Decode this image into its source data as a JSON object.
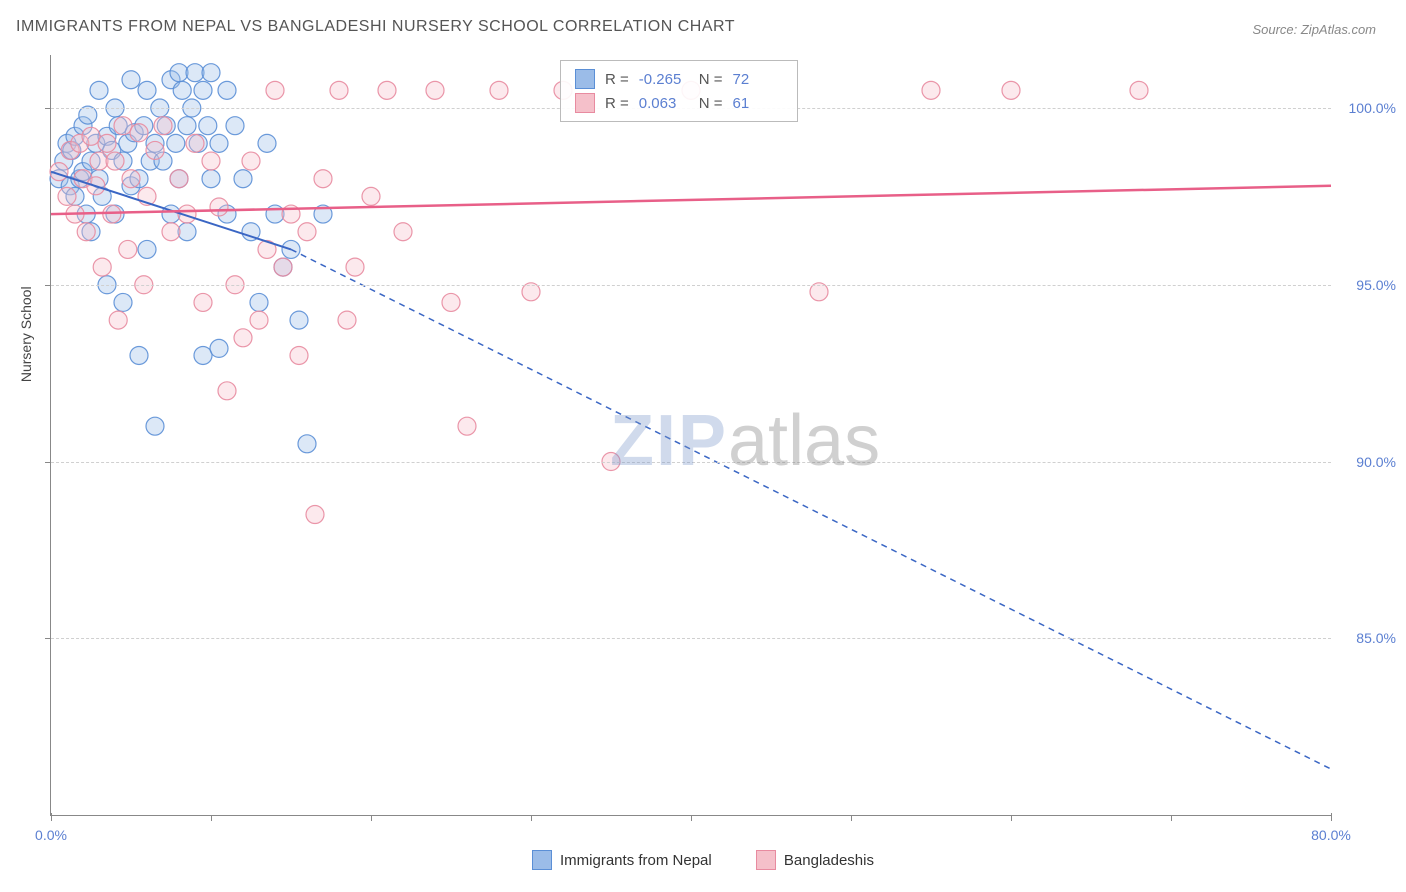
{
  "title": "IMMIGRANTS FROM NEPAL VS BANGLADESHI NURSERY SCHOOL CORRELATION CHART",
  "source": "Source: ZipAtlas.com",
  "ylabel": "Nursery School",
  "watermark": {
    "part1": "ZIP",
    "part2": "atlas"
  },
  "chart": {
    "type": "scatter-correlation",
    "xlim": [
      0,
      80
    ],
    "ylim": [
      80,
      101.5
    ],
    "xtick_major": [
      0,
      80
    ],
    "xtick_minor": [
      10,
      20,
      30,
      40,
      50,
      60,
      70
    ],
    "ytick_labels": [
      85.0,
      90.0,
      95.0,
      100.0
    ],
    "x_tick_format": "{v}.0%",
    "y_tick_format": "{v}.0%",
    "background_color": "#ffffff",
    "grid_color": "#d0d0d0",
    "axis_color": "#888888",
    "marker_radius": 9,
    "series": [
      {
        "key": "nepal",
        "label": "Immigrants from Nepal",
        "color_fill": "#9bbce8",
        "color_stroke": "#5b8fd6",
        "R": "-0.265",
        "N": "72",
        "trend": {
          "solid": [
            [
              0,
              98.2
            ],
            [
              15,
              96.0
            ]
          ],
          "dashed": [
            [
              15,
              96.0
            ],
            [
              80,
              81.3
            ]
          ],
          "color": "#3a66c4",
          "width": 2
        },
        "points": [
          [
            0.5,
            98.0
          ],
          [
            0.8,
            98.5
          ],
          [
            1.0,
            99.0
          ],
          [
            1.2,
            97.8
          ],
          [
            1.3,
            98.8
          ],
          [
            1.5,
            99.2
          ],
          [
            1.5,
            97.5
          ],
          [
            1.8,
            98.0
          ],
          [
            2.0,
            99.5
          ],
          [
            2.0,
            98.2
          ],
          [
            2.2,
            97.0
          ],
          [
            2.3,
            99.8
          ],
          [
            2.5,
            98.5
          ],
          [
            2.5,
            96.5
          ],
          [
            2.8,
            99.0
          ],
          [
            3.0,
            100.5
          ],
          [
            3.0,
            98.0
          ],
          [
            3.2,
            97.5
          ],
          [
            3.5,
            99.2
          ],
          [
            3.5,
            95.0
          ],
          [
            3.8,
            98.8
          ],
          [
            4.0,
            100.0
          ],
          [
            4.0,
            97.0
          ],
          [
            4.2,
            99.5
          ],
          [
            4.5,
            98.5
          ],
          [
            4.5,
            94.5
          ],
          [
            4.8,
            99.0
          ],
          [
            5.0,
            100.8
          ],
          [
            5.0,
            97.8
          ],
          [
            5.2,
            99.3
          ],
          [
            5.5,
            98.0
          ],
          [
            5.5,
            93.0
          ],
          [
            5.8,
            99.5
          ],
          [
            6.0,
            100.5
          ],
          [
            6.0,
            96.0
          ],
          [
            6.2,
            98.5
          ],
          [
            6.5,
            99.0
          ],
          [
            6.5,
            91.0
          ],
          [
            6.8,
            100.0
          ],
          [
            7.0,
            98.5
          ],
          [
            7.2,
            99.5
          ],
          [
            7.5,
            100.8
          ],
          [
            7.5,
            97.0
          ],
          [
            7.8,
            99.0
          ],
          [
            8.0,
            101.0
          ],
          [
            8.0,
            98.0
          ],
          [
            8.2,
            100.5
          ],
          [
            8.5,
            99.5
          ],
          [
            8.5,
            96.5
          ],
          [
            8.8,
            100.0
          ],
          [
            9.0,
            101.0
          ],
          [
            9.2,
            99.0
          ],
          [
            9.5,
            100.5
          ],
          [
            9.5,
            93.0
          ],
          [
            9.8,
            99.5
          ],
          [
            10.0,
            101.0
          ],
          [
            10.0,
            98.0
          ],
          [
            10.5,
            99.0
          ],
          [
            10.5,
            93.2
          ],
          [
            11.0,
            100.5
          ],
          [
            11.0,
            97.0
          ],
          [
            11.5,
            99.5
          ],
          [
            12.0,
            98.0
          ],
          [
            12.5,
            96.5
          ],
          [
            13.0,
            94.5
          ],
          [
            13.5,
            99.0
          ],
          [
            14.0,
            97.0
          ],
          [
            14.5,
            95.5
          ],
          [
            15.0,
            96.0
          ],
          [
            15.5,
            94.0
          ],
          [
            16.0,
            90.5
          ],
          [
            17.0,
            97.0
          ]
        ]
      },
      {
        "key": "bangladeshi",
        "label": "Bangladeshis",
        "color_fill": "#f5c0ca",
        "color_stroke": "#e88ba0",
        "R": "0.063",
        "N": "61",
        "trend": {
          "solid": [
            [
              0,
              97.0
            ],
            [
              80,
              97.8
            ]
          ],
          "color": "#e85f88",
          "width": 2.5
        },
        "points": [
          [
            0.5,
            98.2
          ],
          [
            1.0,
            97.5
          ],
          [
            1.2,
            98.8
          ],
          [
            1.5,
            97.0
          ],
          [
            1.8,
            99.0
          ],
          [
            2.0,
            98.0
          ],
          [
            2.2,
            96.5
          ],
          [
            2.5,
            99.2
          ],
          [
            2.8,
            97.8
          ],
          [
            3.0,
            98.5
          ],
          [
            3.2,
            95.5
          ],
          [
            3.5,
            99.0
          ],
          [
            3.8,
            97.0
          ],
          [
            4.0,
            98.5
          ],
          [
            4.2,
            94.0
          ],
          [
            4.5,
            99.5
          ],
          [
            4.8,
            96.0
          ],
          [
            5.0,
            98.0
          ],
          [
            5.5,
            99.3
          ],
          [
            5.8,
            95.0
          ],
          [
            6.0,
            97.5
          ],
          [
            6.5,
            98.8
          ],
          [
            7.0,
            99.5
          ],
          [
            7.5,
            96.5
          ],
          [
            8.0,
            98.0
          ],
          [
            8.5,
            97.0
          ],
          [
            9.0,
            99.0
          ],
          [
            9.5,
            94.5
          ],
          [
            10.0,
            98.5
          ],
          [
            10.5,
            97.2
          ],
          [
            11.0,
            92.0
          ],
          [
            11.5,
            95.0
          ],
          [
            12.0,
            93.5
          ],
          [
            12.5,
            98.5
          ],
          [
            13.0,
            94.0
          ],
          [
            13.5,
            96.0
          ],
          [
            14.0,
            100.5
          ],
          [
            14.5,
            95.5
          ],
          [
            15.0,
            97.0
          ],
          [
            15.5,
            93.0
          ],
          [
            16.0,
            96.5
          ],
          [
            16.5,
            88.5
          ],
          [
            17.0,
            98.0
          ],
          [
            18.0,
            100.5
          ],
          [
            18.5,
            94.0
          ],
          [
            19.0,
            95.5
          ],
          [
            20.0,
            97.5
          ],
          [
            21.0,
            100.5
          ],
          [
            22.0,
            96.5
          ],
          [
            24.0,
            100.5
          ],
          [
            25.0,
            94.5
          ],
          [
            26.0,
            91.0
          ],
          [
            28.0,
            100.5
          ],
          [
            30.0,
            94.8
          ],
          [
            32.0,
            100.5
          ],
          [
            35.0,
            90.0
          ],
          [
            40.0,
            100.5
          ],
          [
            48.0,
            94.8
          ],
          [
            55.0,
            100.5
          ],
          [
            60.0,
            100.5
          ],
          [
            68.0,
            100.5
          ]
        ]
      }
    ]
  },
  "legend_top": {
    "r_label": "R =",
    "n_label": "N ="
  }
}
